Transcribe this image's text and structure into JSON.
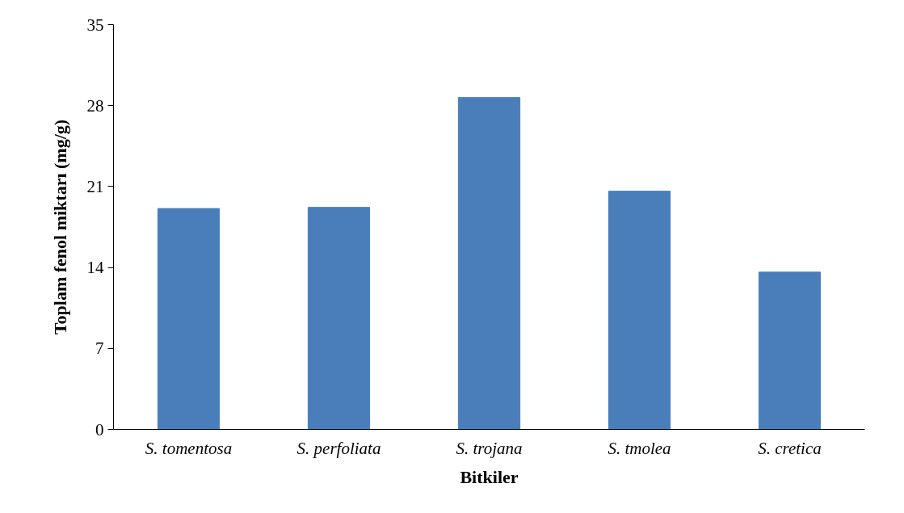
{
  "chart_data": {
    "type": "bar",
    "xlabel": "Bitkiler",
    "ylabel": "Toplam fenol miktarı (mg/g)",
    "categories": [
      "S. tomentosa",
      "S. perfoliata",
      "S. trojana",
      "S. tmolea",
      "S. cretica"
    ],
    "values": [
      19.1,
      19.2,
      28.7,
      20.6,
      13.6
    ],
    "color": "#4a7ebb",
    "ylim": [
      0,
      35
    ],
    "yticks": [
      0,
      7,
      14,
      21,
      28,
      35
    ],
    "grid": false
  }
}
